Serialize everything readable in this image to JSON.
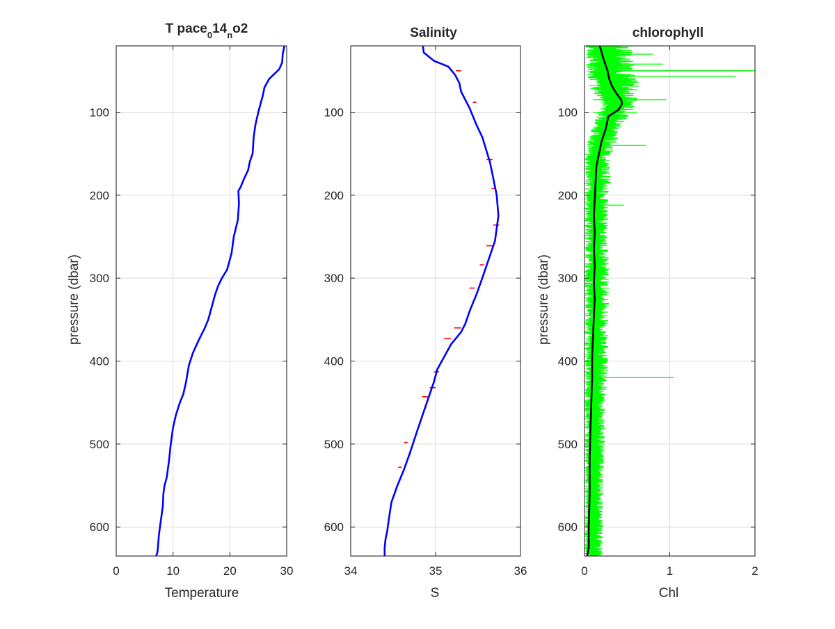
{
  "chart_data": [
    {
      "type": "line",
      "title_parts": [
        "T pace",
        "0",
        "14",
        "n",
        "o2"
      ],
      "xlabel": "Temperature",
      "ylabel": "pressure (dbar)",
      "xlim": [
        0,
        30
      ],
      "ylim": [
        20,
        635
      ],
      "y_reversed": true,
      "grid": true,
      "xticks": [
        "0",
        "10",
        "20",
        "30"
      ],
      "yticks": [
        "100",
        "200",
        "300",
        "400",
        "500",
        "600"
      ],
      "series": [
        {
          "color": "#0000ff",
          "x": [
            29.6,
            29.3,
            29.2,
            28.7,
            26.9,
            26.1,
            25.8,
            25.4,
            25.0,
            24.5,
            24.2,
            24.0,
            23.5,
            23.2,
            22.5,
            21.9,
            21.5,
            21.6,
            21.4,
            20.7,
            20.3,
            19.5,
            18.6,
            17.9,
            17.4,
            17.0,
            16.6,
            16.2,
            15.6,
            14.5,
            13.5,
            12.8,
            12.3,
            11.8,
            11.2,
            10.5,
            10.0,
            9.6,
            9.3,
            8.9,
            8.5,
            8.3,
            8.2,
            7.9,
            7.7,
            7.5,
            7.4,
            7.3,
            7.2,
            7.0
          ],
          "y": [
            20,
            30,
            40,
            48,
            60,
            70,
            80,
            90,
            100,
            115,
            130,
            150,
            160,
            170,
            180,
            190,
            195,
            210,
            230,
            250,
            270,
            290,
            300,
            310,
            320,
            330,
            340,
            350,
            360,
            375,
            390,
            405,
            425,
            440,
            450,
            465,
            480,
            500,
            520,
            540,
            550,
            560,
            575,
            590,
            600,
            610,
            620,
            628,
            632,
            635
          ]
        }
      ]
    },
    {
      "type": "line",
      "title": "Salinity",
      "xlabel": "S",
      "xlim": [
        34,
        36
      ],
      "ylim": [
        20,
        635
      ],
      "y_reversed": true,
      "grid": true,
      "xticks": [
        "34",
        "35",
        "36"
      ],
      "yticks": [
        "100",
        "200",
        "300",
        "400",
        "500",
        "600"
      ],
      "series": [
        {
          "color": "#0000ff",
          "x": [
            34.85,
            34.86,
            34.98,
            35.15,
            35.23,
            35.28,
            35.3,
            35.35,
            35.4,
            35.44,
            35.48,
            35.55,
            35.58,
            35.61,
            35.64,
            35.66,
            35.68,
            35.7,
            35.72,
            35.74,
            35.72,
            35.7,
            35.65,
            35.6,
            35.55,
            35.48,
            35.4,
            35.35,
            35.3,
            35.18,
            35.1,
            35.02,
            34.98,
            34.93,
            34.83,
            34.78,
            34.7,
            34.63,
            34.55,
            34.48,
            34.45,
            34.43,
            34.41,
            34.4,
            34.4
          ],
          "y": [
            20,
            28,
            38,
            45,
            55,
            65,
            75,
            85,
            95,
            105,
            115,
            130,
            140,
            150,
            160,
            170,
            180,
            190,
            200,
            225,
            240,
            255,
            270,
            285,
            300,
            320,
            340,
            355,
            365,
            380,
            395,
            410,
            425,
            440,
            470,
            485,
            510,
            530,
            550,
            570,
            590,
            605,
            615,
            625,
            635
          ]
        }
      ],
      "spike_color": "#ff0000",
      "spikes": [
        {
          "y": 50,
          "x1": 35.24,
          "x2": 35.3
        },
        {
          "y": 88,
          "x1": 35.44,
          "x2": 35.48
        },
        {
          "y": 157,
          "x1": 35.6,
          "x2": 35.67
        },
        {
          "y": 192,
          "x1": 35.66,
          "x2": 35.71
        },
        {
          "y": 236,
          "x1": 35.68,
          "x2": 35.75
        },
        {
          "y": 261,
          "x1": 35.6,
          "x2": 35.67
        },
        {
          "y": 284,
          "x1": 35.52,
          "x2": 35.57
        },
        {
          "y": 312,
          "x1": 35.4,
          "x2": 35.46
        },
        {
          "y": 360,
          "x1": 35.22,
          "x2": 35.3
        },
        {
          "y": 373,
          "x1": 35.1,
          "x2": 35.18
        },
        {
          "y": 413,
          "x1": 34.98,
          "x2": 35.04
        },
        {
          "y": 432,
          "x1": 34.93,
          "x2": 35.0
        },
        {
          "y": 443,
          "x1": 34.84,
          "x2": 34.92
        },
        {
          "y": 498,
          "x1": 34.63,
          "x2": 34.67
        },
        {
          "y": 528,
          "x1": 34.56,
          "x2": 34.6
        }
      ]
    },
    {
      "type": "line",
      "title": "chlorophyll",
      "xlabel": "Chl",
      "ylabel": "pressure (dbar)",
      "xlim": [
        0,
        2
      ],
      "ylim": [
        20,
        635
      ],
      "y_reversed": true,
      "grid": true,
      "xticks": [
        "0",
        "1",
        "2"
      ],
      "yticks": [
        "100",
        "200",
        "300",
        "400",
        "500",
        "600"
      ],
      "raw_color": "#00ff00",
      "raw_spikes": [
        {
          "y": 50,
          "x": 2.0
        },
        {
          "y": 57,
          "x": 1.77
        },
        {
          "y": 42,
          "x": 0.92
        },
        {
          "y": 85,
          "x": 0.96
        },
        {
          "y": 140,
          "x": 0.72
        },
        {
          "y": 212,
          "x": 0.46
        },
        {
          "y": 420,
          "x": 1.05
        },
        {
          "y": 30,
          "x": 0.8
        },
        {
          "y": 100,
          "x": 0.62
        }
      ],
      "raw_envelope": {
        "y": [
          20,
          50,
          70,
          90,
          110,
          130,
          150,
          160,
          180,
          200,
          250,
          300,
          350,
          400,
          450,
          500,
          550,
          600,
          635
        ],
        "lo": [
          0.0,
          0.02,
          0.05,
          0.2,
          0.12,
          0.05,
          0.0,
          0.0,
          0.0,
          0.0,
          0.0,
          0.0,
          0.0,
          0.0,
          0.0,
          0.0,
          0.0,
          0.0,
          0.0
        ],
        "hi": [
          0.55,
          0.6,
          0.65,
          0.62,
          0.48,
          0.4,
          0.33,
          0.3,
          0.32,
          0.28,
          0.28,
          0.3,
          0.28,
          0.28,
          0.25,
          0.24,
          0.22,
          0.22,
          0.22
        ]
      },
      "series": [
        {
          "color": "#000000",
          "name": "",
          "x": [
            0.18,
            0.22,
            0.27,
            0.29,
            0.33,
            0.38,
            0.43,
            0.44,
            0.4,
            0.28,
            0.25,
            0.2,
            0.17,
            0.14,
            0.13,
            0.12,
            0.11,
            0.12,
            0.11,
            0.12,
            0.11,
            0.12,
            0.11,
            0.1,
            0.09,
            0.09,
            0.08,
            0.07,
            0.06,
            0.06,
            0.05,
            0.05,
            0.03
          ],
          "y": [
            20,
            35,
            50,
            60,
            70,
            78,
            85,
            90,
            97,
            105,
            120,
            135,
            150,
            165,
            185,
            205,
            225,
            245,
            265,
            285,
            305,
            325,
            345,
            370,
            395,
            420,
            450,
            480,
            520,
            560,
            600,
            625,
            635
          ]
        }
      ]
    }
  ]
}
